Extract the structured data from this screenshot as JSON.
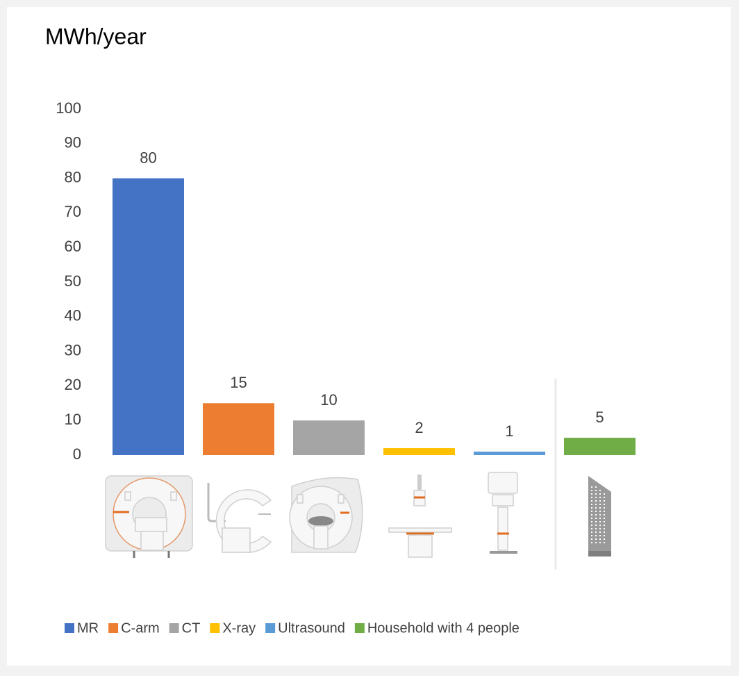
{
  "chart_data": {
    "type": "bar",
    "title": "MWh/year",
    "ylim": [
      0,
      100
    ],
    "yticks": [
      0,
      10,
      20,
      30,
      40,
      50,
      60,
      70,
      80,
      90,
      100
    ],
    "grid": false,
    "legend": "bottom",
    "series": [
      {
        "name": "MR",
        "color": "#4472c4",
        "values": [
          80
        ]
      },
      {
        "name": "C-arm",
        "color": "#ed7d31",
        "values": [
          15
        ]
      },
      {
        "name": "CT",
        "color": "#a5a5a5",
        "values": [
          10
        ]
      },
      {
        "name": "X-ray",
        "color": "#ffc000",
        "values": [
          2
        ]
      },
      {
        "name": "Ultrasound",
        "color": "#5b9bd5",
        "values": [
          1
        ]
      },
      {
        "name": "Household with 4 people",
        "color": "#70ad47",
        "values": [
          5
        ]
      }
    ]
  }
}
